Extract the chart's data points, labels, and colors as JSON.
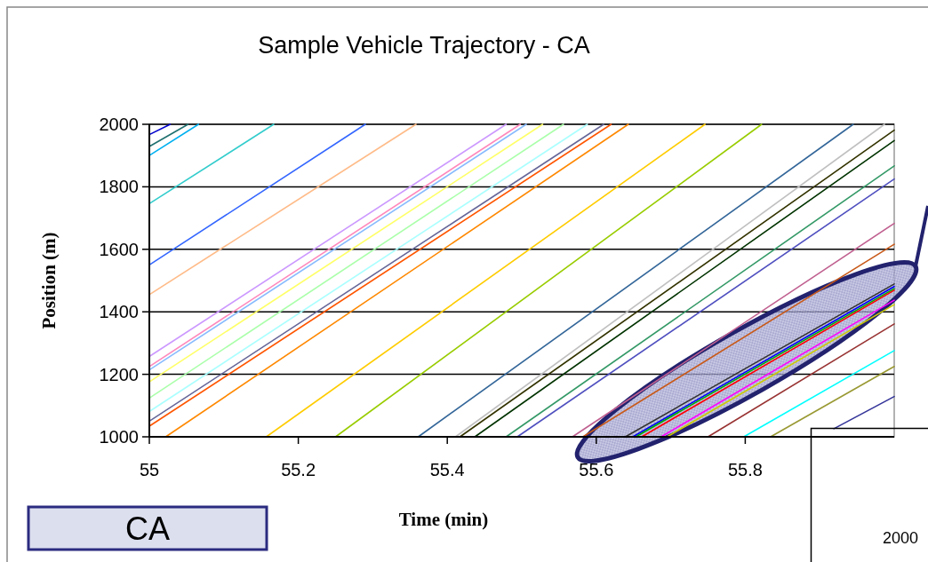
{
  "chart_data": {
    "type": "line",
    "title": "Sample Vehicle Trajectory - CA",
    "xlabel": "Time (min)",
    "ylabel": "Position (m)",
    "xlim": [
      55,
      56
    ],
    "ylim": [
      1000,
      2000
    ],
    "xticks": [
      55,
      55.2,
      55.4,
      55.6,
      55.8
    ],
    "yticks": [
      1000,
      1200,
      1400,
      1600,
      1800,
      2000
    ],
    "grid": "y",
    "annotations": [
      "CA",
      "2000"
    ],
    "series": [
      {
        "color": "#0000cc",
        "x": [
          55,
          55.028
        ],
        "values": [
          1967,
          2000
        ]
      },
      {
        "color": "#207070",
        "x": [
          55,
          55.052
        ],
        "values": [
          1929,
          2000
        ]
      },
      {
        "color": "#00b0f0",
        "x": [
          55,
          55.066
        ],
        "values": [
          1900,
          2000
        ]
      },
      {
        "color": "#33cccc",
        "x": [
          55,
          55.167
        ],
        "values": [
          1746,
          2000
        ]
      },
      {
        "color": "#3366ff",
        "x": [
          55,
          55.29
        ],
        "values": [
          1550,
          2000
        ]
      },
      {
        "color": "#ffbb88",
        "x": [
          55,
          55.358
        ],
        "values": [
          1455,
          2000
        ]
      },
      {
        "color": "#cc99ff",
        "x": [
          55,
          55.479
        ],
        "values": [
          1257,
          2000
        ]
      },
      {
        "color": "#ff88bb",
        "x": [
          55,
          55.498
        ],
        "values": [
          1225,
          2000
        ]
      },
      {
        "color": "#88bbff",
        "x": [
          55,
          55.506
        ],
        "values": [
          1214,
          2000
        ]
      },
      {
        "color": "#ffff66",
        "x": [
          55,
          55.528
        ],
        "values": [
          1176,
          2000
        ]
      },
      {
        "color": "#aaffaa",
        "x": [
          55,
          55.556
        ],
        "values": [
          1124,
          2000
        ]
      },
      {
        "color": "#aaffff",
        "x": [
          55,
          55.588
        ],
        "values": [
          1081,
          2000
        ]
      },
      {
        "color": "#666699",
        "x": [
          55,
          55.61
        ],
        "values": [
          1050,
          2000
        ]
      },
      {
        "color": "#ff5500",
        "x": [
          55,
          55.62
        ],
        "values": [
          1034,
          2000
        ]
      },
      {
        "color": "#ff8800",
        "x": [
          55.022,
          55.643
        ],
        "values": [
          1000,
          2000
        ]
      },
      {
        "color": "#ffcc00",
        "x": [
          55.157,
          55.746
        ],
        "values": [
          1000,
          2000
        ]
      },
      {
        "color": "#99cc00",
        "x": [
          55.25,
          55.822
        ],
        "values": [
          1000,
          2000
        ]
      },
      {
        "color": "#336699",
        "x": [
          55.361,
          55.945
        ],
        "values": [
          1000,
          2000
        ]
      },
      {
        "color": "#c0c0c0",
        "x": [
          55.411,
          55.987
        ],
        "values": [
          1000,
          2000
        ]
      },
      {
        "color": "#333300",
        "x": [
          55.417,
          56
        ],
        "values": [
          1000,
          1981
        ]
      },
      {
        "color": "#003300",
        "x": [
          55.437,
          56
        ],
        "values": [
          1000,
          1948
        ]
      },
      {
        "color": "#339966",
        "x": [
          55.479,
          56
        ],
        "values": [
          1000,
          1867
        ]
      },
      {
        "color": "#5050c0",
        "x": [
          55.494,
          56
        ],
        "values": [
          1000,
          1825
        ]
      },
      {
        "color": "#c06090",
        "x": [
          55.568,
          56
        ],
        "values": [
          1000,
          1683
        ]
      },
      {
        "color": "#c85a1a",
        "x": [
          55.582,
          56
        ],
        "values": [
          1000,
          1616
        ]
      },
      {
        "color": "#333333",
        "x": [
          55.639,
          56
        ],
        "values": [
          1000,
          1489
        ]
      },
      {
        "color": "#0000ff",
        "x": [
          55.649,
          56
        ],
        "values": [
          1000,
          1481
        ]
      },
      {
        "color": "#00aa00",
        "x": [
          55.653,
          56
        ],
        "values": [
          1000,
          1474
        ]
      },
      {
        "color": "#ff0000",
        "x": [
          55.661,
          56
        ],
        "values": [
          1000,
          1469
        ]
      },
      {
        "color": "#ff00ff",
        "x": [
          55.687,
          56
        ],
        "values": [
          1000,
          1437
        ]
      },
      {
        "color": "#cccc00",
        "x": [
          55.695,
          56
        ],
        "values": [
          1000,
          1423
        ]
      },
      {
        "color": "#993333",
        "x": [
          55.75,
          56
        ],
        "values": [
          1000,
          1361
        ]
      },
      {
        "color": "#00ffff",
        "x": [
          55.798,
          56
        ],
        "values": [
          1000,
          1276
        ]
      },
      {
        "color": "#999933",
        "x": [
          55.834,
          56
        ],
        "values": [
          1000,
          1225
        ]
      },
      {
        "color": "#333399",
        "x": [
          55.919,
          56
        ],
        "values": [
          1026,
          1129
        ]
      }
    ]
  }
}
